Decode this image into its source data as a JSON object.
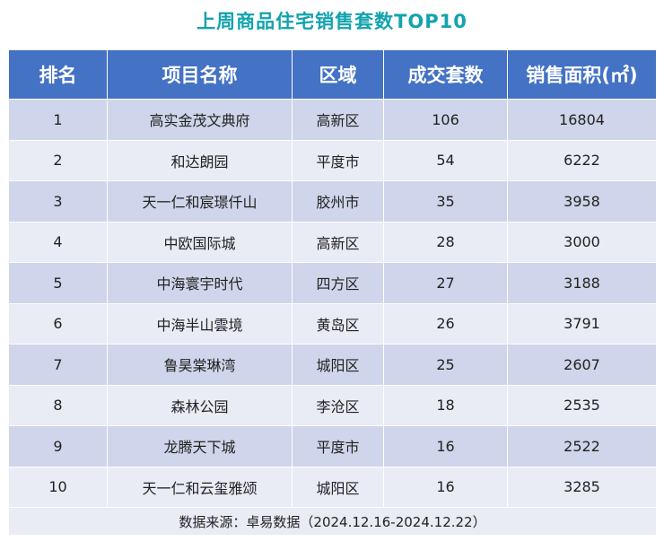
{
  "title": "上周商品住宅销售套数TOP10",
  "table": {
    "headers": [
      "排名",
      "项目名称",
      "区域",
      "成交套数",
      "销售面积(㎡)"
    ],
    "rows": [
      [
        "1",
        "高实金茂文典府",
        "高新区",
        "106",
        "16804"
      ],
      [
        "2",
        "和达朗园",
        "平度市",
        "54",
        "6222"
      ],
      [
        "3",
        "天一仁和宸璟仟山",
        "胶州市",
        "35",
        "3958"
      ],
      [
        "4",
        "中欧国际城",
        "高新区",
        "28",
        "3000"
      ],
      [
        "5",
        "中海寰宇时代",
        "四方区",
        "27",
        "3188"
      ],
      [
        "6",
        "中海半山雲境",
        "黄岛区",
        "26",
        "3791"
      ],
      [
        "7",
        "鲁昊棠琳湾",
        "城阳区",
        "25",
        "2607"
      ],
      [
        "8",
        "森林公园",
        "李沧区",
        "18",
        "2535"
      ],
      [
        "9",
        "龙腾天下城",
        "平度市",
        "16",
        "2522"
      ],
      [
        "10",
        "天一仁和云玺雅颂",
        "城阳区",
        "16",
        "3285"
      ]
    ]
  },
  "footer": "数据来源：卓易数据（2024.12.16-2024.12.22）"
}
